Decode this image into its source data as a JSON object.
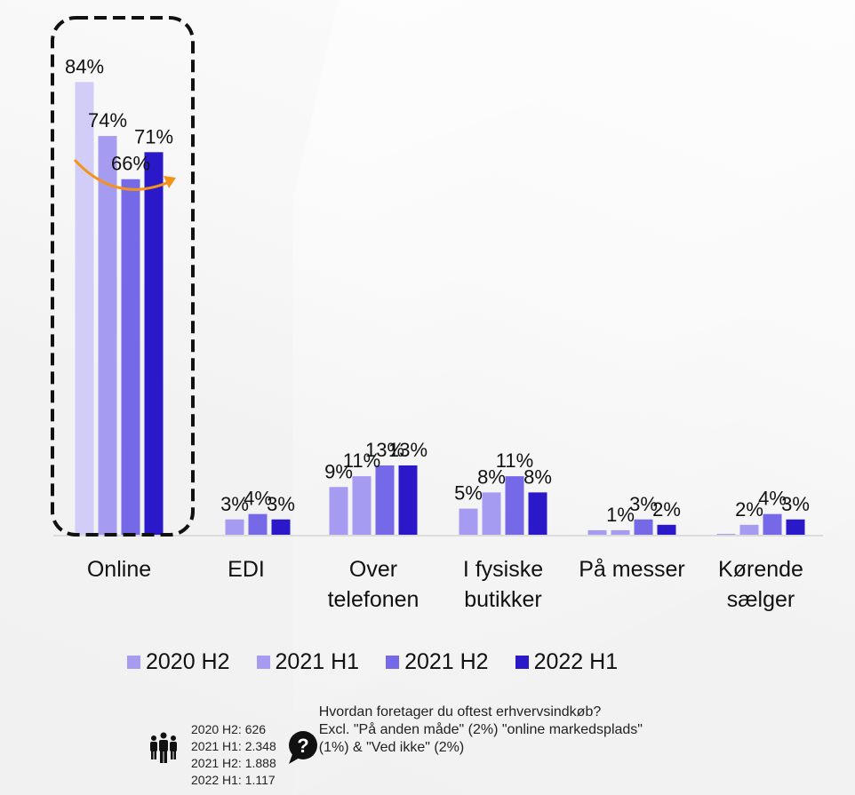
{
  "chart_data": {
    "type": "bar",
    "title": "",
    "xlabel": "",
    "ylabel": "",
    "ylim": [
      0,
      100
    ],
    "grid": false,
    "legend_position": "bottom",
    "categories": [
      "Online",
      "EDI",
      "Over telefonen",
      "I fysiske butikker",
      "På messer",
      "Kørende sælger"
    ],
    "category_lines": [
      [
        "Online"
      ],
      [
        "EDI"
      ],
      [
        "Over",
        "telefonen"
      ],
      [
        "I fysiske",
        "butikker"
      ],
      [
        "På messer"
      ],
      [
        "Kørende",
        "sælger"
      ]
    ],
    "series": [
      {
        "name": "2020 H2",
        "color": "#a59cf2",
        "values": [
          84,
          0,
          9,
          5,
          1,
          0
        ],
        "labels": [
          "84%",
          "",
          "9%",
          "5%",
          "",
          ""
        ]
      },
      {
        "name": "2021 H1",
        "color": "#a59cf2",
        "values": [
          74,
          3,
          11,
          8,
          1,
          2
        ],
        "labels": [
          "74%",
          "3%",
          "11%",
          "8%",
          "1%",
          "2%"
        ]
      },
      {
        "name": "2021 H2",
        "color": "#7669e8",
        "values": [
          66,
          4,
          13,
          11,
          3,
          4
        ],
        "labels": [
          "66%",
          "4%",
          "13%",
          "11%",
          "3%",
          "4%"
        ]
      },
      {
        "name": "2022 H1",
        "color": "#2b18c9",
        "values": [
          71,
          3,
          13,
          8,
          2,
          3
        ],
        "labels": [
          "71%",
          "3%",
          "13%",
          "8%",
          "2%",
          "3%"
        ]
      }
    ],
    "highlight": {
      "category": "Online",
      "first_bar_color": "#d2cdf8",
      "arrow_color": "#f39419"
    },
    "annotations": [
      "dashed box around Online",
      "curved arrow indicating trend"
    ]
  },
  "legend": [
    {
      "label": "2020 H2",
      "color": "#a59cf2"
    },
    {
      "label": "2021 H1",
      "color": "#a59cf2"
    },
    {
      "label": "2021 H2",
      "color": "#7669e8"
    },
    {
      "label": "2022 H1",
      "color": "#2b18c9"
    }
  ],
  "footer": {
    "sample_sizes": [
      "2020 H2: 626",
      "2021 H1: 2.348",
      "2021 H2: 1.888",
      "2022 H1: 1.117"
    ],
    "question_lines": [
      "Hvordan foretager du oftest erhvervsindkøb?",
      "Excl. \"På anden måde\" (2%) \"online markedsplads\"",
      "(1%) & \"Ved ikke\" (2%)"
    ]
  }
}
